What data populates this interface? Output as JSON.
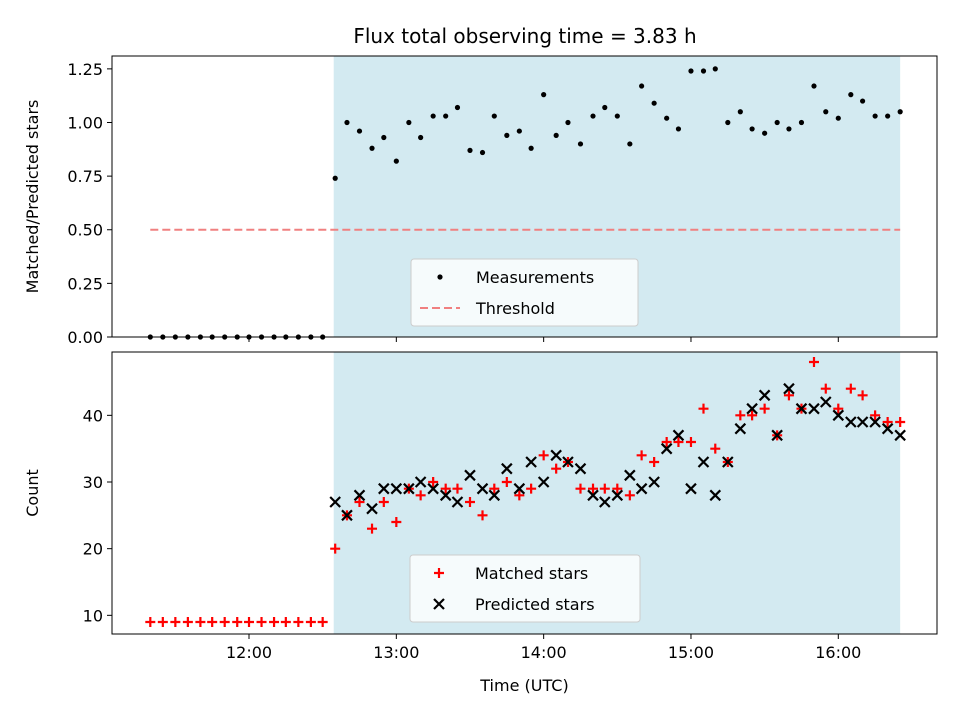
{
  "chart_data": [
    {
      "type": "scatter",
      "title": "Flux total observing time = 3.83 h",
      "xlabel": "",
      "ylabel": "Matched/Predicted stars",
      "ylim": [
        0,
        1.31
      ],
      "yticks": [
        "0.00",
        "0.25",
        "0.50",
        "0.75",
        "1.00",
        "1.25"
      ],
      "yticks_values": [
        0,
        0.25,
        0.5,
        0.75,
        1.0,
        1.25
      ],
      "xlim_hours": [
        11.07,
        16.67
      ],
      "shaded_interval_hours": [
        12.575,
        16.42
      ],
      "shade_color": "#d3eaf1",
      "grid": false,
      "legend_position": "lower-center",
      "series": [
        {
          "name": "Measurements",
          "color": "#000000",
          "marker": "dot",
          "x_hours": [
            11.33,
            11.415,
            11.5,
            11.585,
            11.67,
            11.75,
            11.835,
            11.92,
            12.0,
            12.085,
            12.17,
            12.25,
            12.335,
            12.42,
            12.5,
            12.585,
            12.665,
            12.75,
            12.835,
            12.915,
            13.0,
            13.085,
            13.165,
            13.25,
            13.335,
            13.415,
            13.5,
            13.585,
            13.665,
            13.75,
            13.835,
            13.915,
            14.0,
            14.085,
            14.165,
            14.25,
            14.335,
            14.415,
            14.5,
            14.585,
            14.665,
            14.75,
            14.835,
            14.915,
            15.0,
            15.085,
            15.165,
            15.25,
            15.335,
            15.415,
            15.5,
            15.585,
            15.665,
            15.75,
            15.835,
            15.915,
            16.0,
            16.085,
            16.165,
            16.25,
            16.335,
            16.42
          ],
          "y": [
            0,
            0,
            0,
            0,
            0,
            0,
            0,
            0,
            0,
            0,
            0,
            0,
            0,
            0,
            0,
            0.74,
            1.0,
            0.96,
            0.88,
            0.93,
            0.82,
            1.0,
            0.93,
            1.03,
            1.03,
            1.07,
            0.87,
            0.86,
            1.03,
            0.94,
            0.96,
            0.88,
            1.13,
            0.94,
            1.0,
            0.9,
            1.03,
            1.07,
            1.03,
            0.9,
            1.17,
            1.09,
            1.02,
            0.97,
            1.24,
            1.24,
            1.25,
            1.0,
            1.05,
            0.97,
            0.95,
            1.0,
            0.97,
            1.0,
            1.17,
            1.05,
            1.02,
            1.13,
            1.1,
            1.03,
            1.03,
            1.05
          ]
        },
        {
          "name": "Threshold",
          "color": "#f08080",
          "style": "dashed",
          "x_hours": [
            11.33,
            16.42
          ],
          "y": [
            0.5,
            0.5
          ]
        }
      ]
    },
    {
      "type": "scatter",
      "title": "",
      "xlabel": "Time (UTC)",
      "ylabel": "Count",
      "ylim": [
        7.2,
        49.5
      ],
      "yticks": [
        "10",
        "20",
        "30",
        "40"
      ],
      "yticks_values": [
        10,
        20,
        30,
        40
      ],
      "xlim_hours": [
        11.07,
        16.67
      ],
      "xticks": [
        "12:00",
        "13:00",
        "14:00",
        "15:00",
        "16:00"
      ],
      "xticks_hours": [
        12,
        13,
        14,
        15,
        16
      ],
      "shaded_interval_hours": [
        12.575,
        16.42
      ],
      "shade_color": "#d3eaf1",
      "grid": false,
      "legend_position": "lower-center",
      "series": [
        {
          "name": "Matched stars",
          "color": "#ff0000",
          "marker": "plus",
          "x_hours": [
            11.33,
            11.415,
            11.5,
            11.585,
            11.67,
            11.75,
            11.835,
            11.92,
            12.0,
            12.085,
            12.17,
            12.25,
            12.335,
            12.42,
            12.5,
            12.585,
            12.665,
            12.75,
            12.835,
            12.915,
            13.0,
            13.085,
            13.165,
            13.25,
            13.335,
            13.415,
            13.5,
            13.585,
            13.665,
            13.75,
            13.835,
            13.915,
            14.0,
            14.085,
            14.165,
            14.25,
            14.335,
            14.415,
            14.5,
            14.585,
            14.665,
            14.75,
            14.835,
            14.915,
            15.0,
            15.085,
            15.165,
            15.25,
            15.335,
            15.415,
            15.5,
            15.585,
            15.665,
            15.75,
            15.835,
            15.915,
            16.0,
            16.085,
            16.165,
            16.25,
            16.335,
            16.42
          ],
          "y": [
            9,
            9,
            9,
            9,
            9,
            9,
            9,
            9,
            9,
            9,
            9,
            9,
            9,
            9,
            9,
            20,
            25,
            27,
            23,
            27,
            24,
            29,
            28,
            30,
            29,
            29,
            27,
            25,
            29,
            30,
            28,
            29,
            34,
            32,
            33,
            29,
            29,
            29,
            29,
            28,
            34,
            33,
            36,
            36,
            36,
            41,
            35,
            33,
            40,
            40,
            41,
            37,
            43,
            41,
            48,
            44,
            41,
            44,
            43,
            40,
            39,
            39
          ]
        },
        {
          "name": "Predicted stars",
          "color": "#000000",
          "marker": "cross",
          "x_hours": [
            12.585,
            12.665,
            12.75,
            12.835,
            12.915,
            13.0,
            13.085,
            13.165,
            13.25,
            13.335,
            13.415,
            13.5,
            13.585,
            13.665,
            13.75,
            13.835,
            13.915,
            14.0,
            14.085,
            14.165,
            14.25,
            14.335,
            14.415,
            14.5,
            14.585,
            14.665,
            14.75,
            14.835,
            14.915,
            15.0,
            15.085,
            15.165,
            15.25,
            15.335,
            15.415,
            15.5,
            15.585,
            15.665,
            15.75,
            15.835,
            15.915,
            16.0,
            16.085,
            16.165,
            16.25,
            16.335,
            16.42
          ],
          "y": [
            27,
            25,
            28,
            26,
            29,
            29,
            29,
            30,
            29,
            28,
            27,
            31,
            29,
            28,
            32,
            29,
            33,
            30,
            34,
            33,
            32,
            28,
            27,
            28,
            31,
            29,
            30,
            35,
            37,
            29,
            33,
            28,
            33,
            38,
            41,
            43,
            37,
            44,
            41,
            41,
            42,
            40,
            39,
            39,
            39,
            38,
            37
          ]
        }
      ]
    }
  ]
}
